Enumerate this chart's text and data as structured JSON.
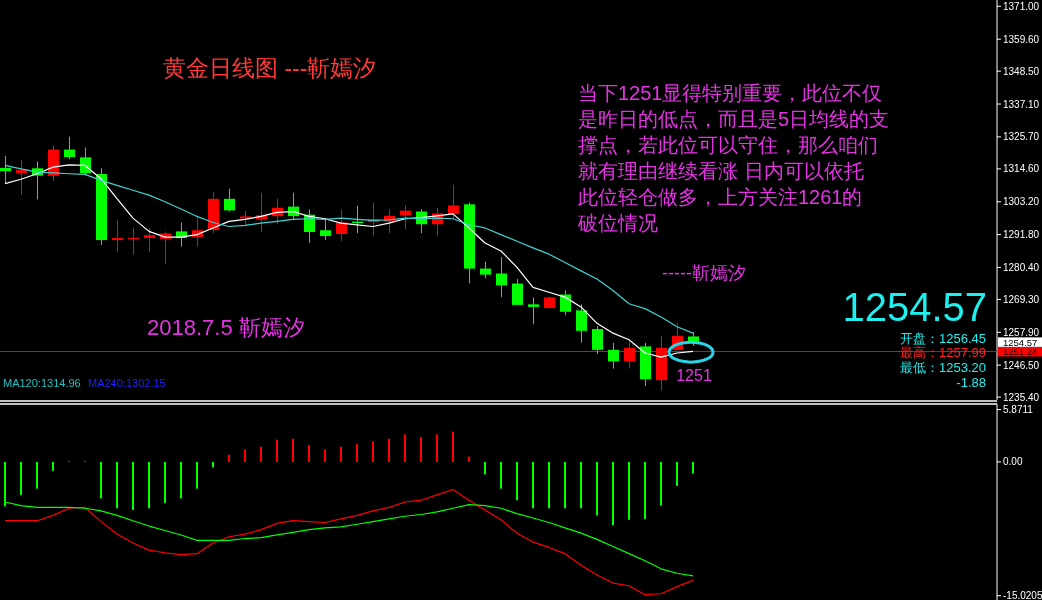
{
  "chart_data": [
    {
      "type": "candlestick",
      "title": "黄金日线图  ---靳嫣汐",
      "categories": [
        null,
        null,
        null,
        null,
        null,
        null,
        null,
        null,
        null,
        null,
        null,
        null,
        null,
        null,
        null,
        null,
        null,
        null,
        null,
        null,
        null,
        null,
        null,
        null,
        null,
        null,
        null,
        null,
        null,
        null,
        null,
        null,
        null,
        null,
        null,
        null,
        null,
        null,
        null,
        null,
        null,
        null,
        null,
        null
      ],
      "ohlc": [
        [
          1314.9,
          1319.1,
          1309.5,
          1313.8
        ],
        [
          1313.2,
          1317.7,
          1305.7,
          1314.3
        ],
        [
          1314.8,
          1317.2,
          1304.0,
          1312.3
        ],
        [
          1312.2,
          1322.7,
          1310.4,
          1321.3
        ],
        [
          1321.3,
          1325.8,
          1318.0,
          1318.7
        ],
        [
          1318.6,
          1322.0,
          1312.3,
          1313.1
        ],
        [
          1312.8,
          1314.8,
          1288.2,
          1289.9
        ],
        [
          1289.9,
          1296.7,
          1285.8,
          1290.6
        ],
        [
          1290.3,
          1294.3,
          1284.8,
          1290.6
        ],
        [
          1290.6,
          1294.1,
          1285.8,
          1291.6
        ],
        [
          1290.3,
          1292.9,
          1281.7,
          1292.2
        ],
        [
          1292.9,
          1296.0,
          1287.6,
          1290.6
        ],
        [
          1291.0,
          1298.4,
          1287.6,
          1293.3
        ],
        [
          1293.4,
          1306.7,
          1292.3,
          1304.2
        ],
        [
          1304.2,
          1307.7,
          1299.8,
          1300.2
        ],
        [
          1297.4,
          1300.1,
          1294.9,
          1298.1
        ],
        [
          1297.1,
          1306.3,
          1292.7,
          1298.5
        ],
        [
          1298.2,
          1304.2,
          1295.4,
          1301.1
        ],
        [
          1301.5,
          1306.3,
          1297.1,
          1298.2
        ],
        [
          1298.7,
          1300.5,
          1288.9,
          1292.7
        ],
        [
          1293.3,
          1297.6,
          1289.9,
          1291.3
        ],
        [
          1292.0,
          1300.5,
          1289.6,
          1296.0
        ],
        [
          1296.3,
          1301.8,
          1292.3,
          1295.8
        ],
        [
          1296.1,
          1302.9,
          1291.5,
          1297.1
        ],
        [
          1296.3,
          1300.6,
          1292.3,
          1298.3
        ],
        [
          1298.5,
          1302.1,
          1293.7,
          1300.1
        ],
        [
          1299.8,
          1300.6,
          1292.3,
          1295.4
        ],
        [
          1295.4,
          1301.1,
          1291.5,
          1299.1
        ],
        [
          1298.9,
          1309.1,
          1297.5,
          1301.9
        ],
        [
          1302.3,
          1302.9,
          1274.9,
          1280.0
        ],
        [
          1280.0,
          1282.4,
          1276.6,
          1277.9
        ],
        [
          1278.3,
          1284.0,
          1270.1,
          1274.2
        ],
        [
          1274.8,
          1276.4,
          1267.4,
          1267.4
        ],
        [
          1267.6,
          1270.0,
          1260.7,
          1266.7
        ],
        [
          1266.3,
          1270.3,
          1266.3,
          1270.0
        ],
        [
          1271.0,
          1272.4,
          1263.8,
          1265.0
        ],
        [
          1265.5,
          1267.6,
          1254.3,
          1258.4
        ],
        [
          1259.0,
          1260.1,
          1250.4,
          1251.8
        ],
        [
          1251.8,
          1254.2,
          1245.3,
          1247.8
        ],
        [
          1247.8,
          1254.6,
          1245.3,
          1252.5
        ],
        [
          1253.0,
          1254.2,
          1239.3,
          1241.6
        ],
        [
          1241.3,
          1256.6,
          1237.6,
          1252.5
        ],
        [
          1251.8,
          1261.2,
          1251.8,
          1256.6
        ],
        [
          1256.45,
          1257.99,
          1253.2,
          1254.57
        ]
      ],
      "colors": [
        "#00ff00",
        "#ff0000",
        "#00ff00",
        "#ff0000",
        "#00ff00",
        "#00ff00",
        "#00ff00",
        "#ff0000",
        "#ff0000",
        "#ff0000",
        "#ff0000",
        "#00ff00",
        "#ff0000",
        "#ff0000",
        "#00ff00",
        "#ff0000",
        "#ff0000",
        "#ff0000",
        "#00ff00",
        "#00ff00",
        "#00ff00",
        "#ff0000",
        "#00ff00",
        "#ff0000",
        "#ff0000",
        "#ff0000",
        "#00ff00",
        "#ff0000",
        "#ff0000",
        "#00ff00",
        "#00ff00",
        "#00ff00",
        "#00ff00",
        "#00ff00",
        "#ff0000",
        "#00ff00",
        "#00ff00",
        "#00ff00",
        "#00ff00",
        "#ff0000",
        "#00ff00",
        "#ff0000",
        "#ff0000",
        "#00ff00"
      ],
      "series": [
        {
          "type": "line",
          "color": "#ffffff",
          "values": [
            1309.5,
            1311.0,
            1312.9,
            1315.2,
            1316.0,
            1315.8,
            1311.2,
            1304.3,
            1297.5,
            1292.9,
            1290.9,
            1290.9,
            1291.8,
            1294.1,
            1296.4,
            1297.1,
            1298.1,
            1299.5,
            1299.8,
            1298.1,
            1297.3,
            1295.8,
            1295.2,
            1294.6,
            1295.8,
            1297.3,
            1297.7,
            1298.3,
            1299.0,
            1294.1,
            1288.9,
            1286.1,
            1280.4,
            1273.5,
            1271.8,
            1270.1,
            1266.7,
            1261.0,
            1257.6,
            1255.3,
            1250.7,
            1249.3,
            1250.7,
            1251.3
          ]
        },
        {
          "type": "line",
          "color": "#40d0d0",
          "values": [
            1315.8,
            1314.6,
            1313.5,
            1313.2,
            1312.9,
            1312.7,
            1310.6,
            1308.9,
            1307.2,
            1305.5,
            1303.2,
            1300.7,
            1298.1,
            1296.0,
            1294.6,
            1295.0,
            1295.8,
            1296.4,
            1297.1,
            1297.3,
            1297.1,
            1297.5,
            1297.1,
            1296.7,
            1296.9,
            1297.5,
            1297.3,
            1297.5,
            1297.3,
            1295.2,
            1294.1,
            1291.8,
            1289.5,
            1287.2,
            1285.0,
            1282.1,
            1279.2,
            1276.4,
            1272.4,
            1267.8,
            1266.1,
            1263.2,
            1259.8,
            1257.6
          ]
        }
      ],
      "ylim": [
        1234.4,
        1373.2
      ],
      "yticks": [
        {
          "value": 1235.4,
          "label": "1235.40"
        },
        {
          "value": 1246.5,
          "label": "1246.50"
        },
        {
          "value": 1257.9,
          "label": "1257.90"
        },
        {
          "value": 1269.3,
          "label": "1269.30"
        },
        {
          "value": 1280.4,
          "label": "1280.40"
        },
        {
          "value": 1291.8,
          "label": "1291.80"
        },
        {
          "value": 1303.2,
          "label": "1303.20"
        },
        {
          "value": 1314.6,
          "label": "1314.60"
        },
        {
          "value": 1325.7,
          "label": "1325.70"
        },
        {
          "value": 1337.1,
          "label": "1337.10"
        },
        {
          "value": 1348.5,
          "label": "1348.50"
        },
        {
          "value": 1359.6,
          "label": "1359.60"
        },
        {
          "value": 1371,
          "label": "1371.00"
        }
      ],
      "tick_labels": "y",
      "ref_lines": [
        {
          "axis": "y",
          "value": 1251.24,
          "label": "1251.24",
          "color": "#ff0000"
        }
      ],
      "annotations": [
        "当下1251显得特别重要，此位不仅",
        "是昨日的低点，而且是5日均线的支",
        "撑点，若此位可以守住，那么咱们",
        "就有理由继续看涨  日内可以依托",
        "此位轻仓做多，上方关注1261的",
        "破位情况",
        "-----靳嫣汐",
        "2018.7.5  靳嫣汐",
        {
          "text": "1251",
          "y": 1251
        },
        "1254.57",
        "开盘：1256.45",
        "最高：1257.99",
        "最低：1253.20",
        "-1.88",
        "MA120:1314.96",
        "MA240:1302.15",
        "1254.57"
      ]
    },
    {
      "type": "bar",
      "categories": [
        null,
        null,
        null,
        null,
        null,
        null,
        null,
        null,
        null,
        null,
        null,
        null,
        null,
        null,
        null,
        null,
        null,
        null,
        null,
        null,
        null,
        null,
        null,
        null,
        null,
        null,
        null,
        null,
        null,
        null,
        null,
        null,
        null,
        null,
        null,
        null,
        null,
        null,
        null,
        null,
        null,
        null,
        null,
        null
      ],
      "series": [
        {
          "colors": [
            "#00ff00",
            "#00ff00",
            "#00ff00",
            "#00ff00",
            "#ff0000",
            "#ff0000",
            "#00ff00",
            "#00ff00",
            "#00ff00",
            "#00ff00",
            "#00ff00",
            "#00ff00",
            "#00ff00",
            "#00ff00",
            "#ff0000",
            "#ff0000",
            "#ff0000",
            "#ff0000",
            "#ff0000",
            "#ff0000",
            "#ff0000",
            "#ff0000",
            "#ff0000",
            "#ff0000",
            "#ff0000",
            "#ff0000",
            "#ff0000",
            "#ff0000",
            "#ff0000",
            "#ff0000",
            "#00ff00",
            "#00ff00",
            "#00ff00",
            "#00ff00",
            "#00ff00",
            "#00ff00",
            "#00ff00",
            "#00ff00",
            "#00ff00",
            "#00ff00",
            "#00ff00",
            "#00ff00",
            "#00ff00",
            "#00ff00"
          ],
          "values": [
            -5.0,
            -3.7,
            -3.0,
            -1.0,
            0.1,
            0.1,
            -4.1,
            -5.2,
            -5.4,
            -5.2,
            -4.6,
            -4.1,
            -3.0,
            -0.6,
            0.8,
            1.4,
            1.7,
            2.5,
            2.6,
            1.9,
            1.4,
            1.7,
            2.0,
            2.3,
            2.6,
            3.1,
            2.8,
            3.1,
            3.4,
            0.6,
            -1.4,
            -3.0,
            -4.3,
            -5.2,
            -5.2,
            -5.2,
            -5.2,
            -6.0,
            -7.1,
            -6.5,
            -6.4,
            -4.9,
            -2.7,
            -1.3
          ]
        },
        {
          "type": "line",
          "color": "#ff0000",
          "values": [
            -6.6,
            -6.6,
            -6.6,
            -6.0,
            -5.2,
            -5.1,
            -6.7,
            -8.1,
            -9.1,
            -9.9,
            -10.2,
            -10.4,
            -10.3,
            -9.1,
            -8.4,
            -8.1,
            -7.6,
            -6.9,
            -6.6,
            -6.7,
            -6.8,
            -6.4,
            -6.0,
            -5.5,
            -5.1,
            -4.5,
            -4.3,
            -3.7,
            -3.1,
            -4.3,
            -5.4,
            -6.5,
            -8.0,
            -9.0,
            -9.6,
            -10.3,
            -11.6,
            -12.7,
            -13.6,
            -13.9,
            -14.9,
            -14.8,
            -14.0,
            -13.3
          ]
        },
        {
          "type": "line",
          "color": "#00ff00",
          "values": [
            -4.5,
            -4.9,
            -5.1,
            -5.1,
            -5.1,
            -5.2,
            -5.5,
            -6.0,
            -6.6,
            -7.2,
            -7.7,
            -8.2,
            -8.8,
            -8.8,
            -8.8,
            -8.6,
            -8.5,
            -8.2,
            -7.9,
            -7.6,
            -7.4,
            -7.3,
            -7.0,
            -6.7,
            -6.4,
            -6.1,
            -5.9,
            -5.6,
            -5.2,
            -4.8,
            -4.9,
            -5.2,
            -5.8,
            -6.3,
            -6.8,
            -7.4,
            -8.0,
            -8.7,
            -9.5,
            -10.3,
            -11.1,
            -12.0,
            -12.5,
            -12.8
          ]
        }
      ],
      "ylim": [
        -15.5,
        6.5
      ],
      "yticks": [
        5.8711,
        {
          "value": 0,
          "label": "0.00"
        },
        -15.0205
      ],
      "tick_labels": "y"
    }
  ]
}
